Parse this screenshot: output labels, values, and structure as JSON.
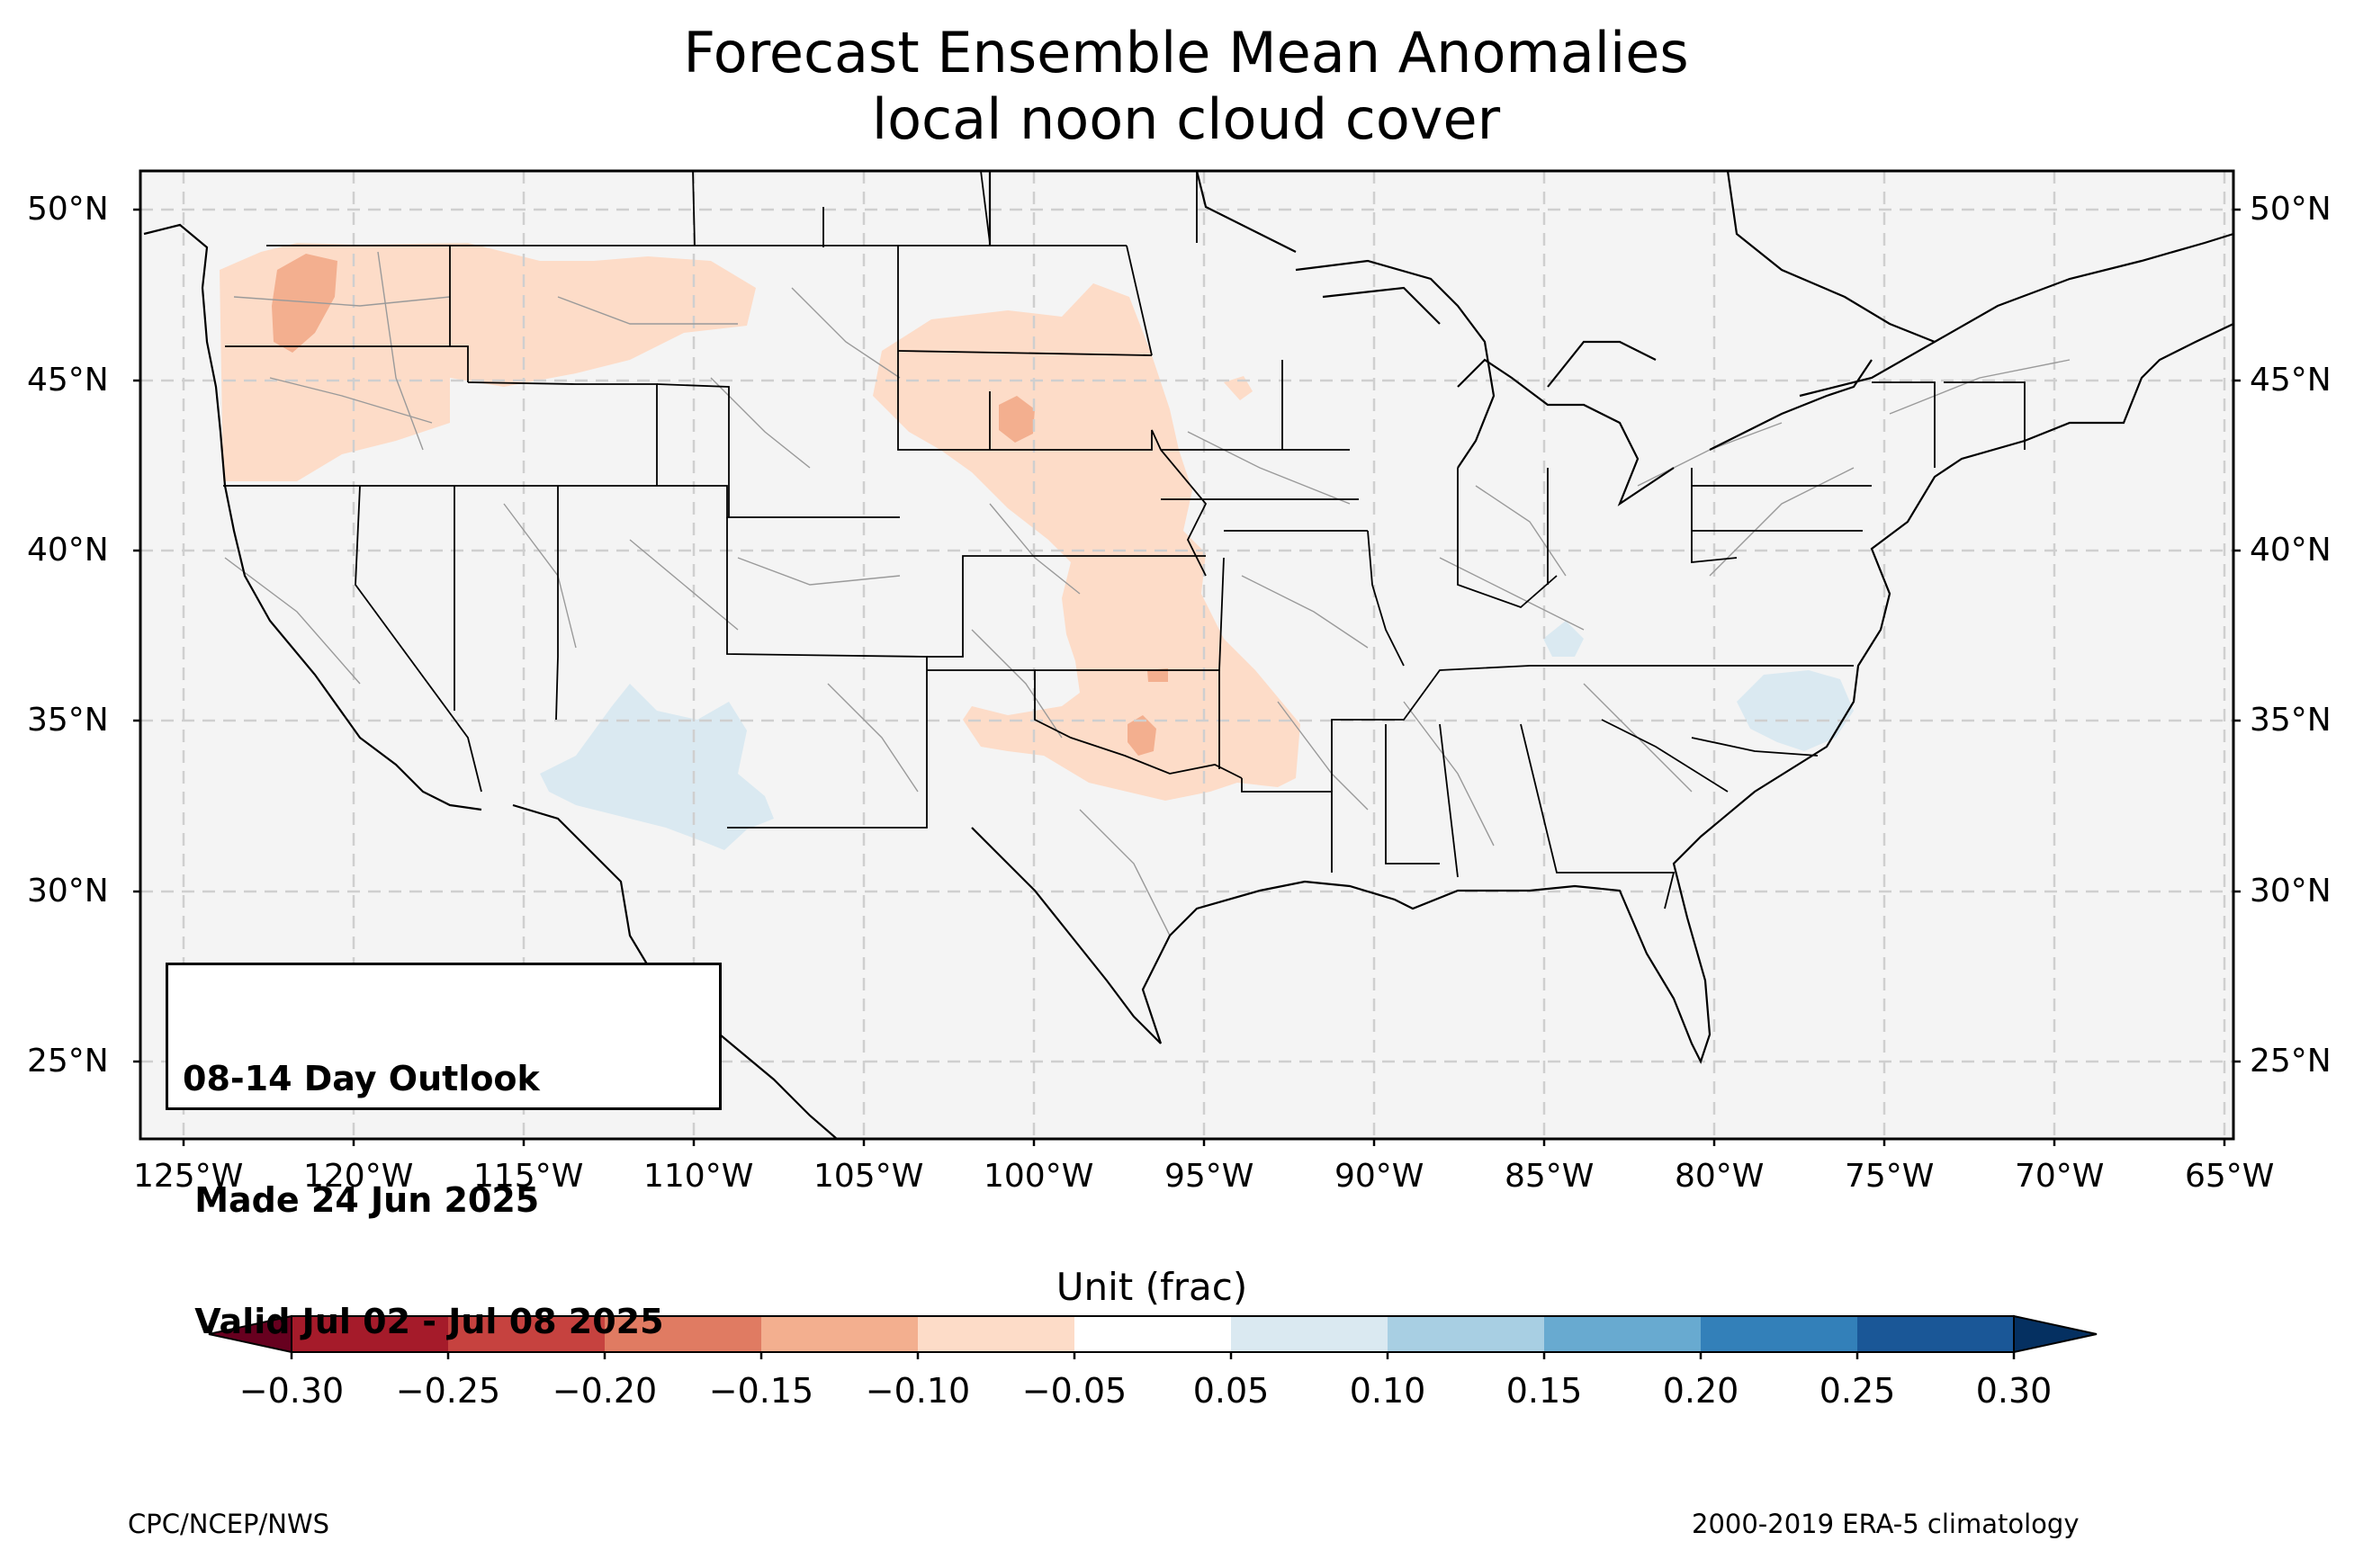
{
  "title": {
    "line1": "Forecast Ensemble Mean Anomalies",
    "line2": "local noon cloud cover"
  },
  "map": {
    "lat_labels": [
      "50°N",
      "45°N",
      "40°N",
      "35°N",
      "30°N",
      "25°N"
    ],
    "lon_labels": [
      "125°W",
      "120°W",
      "115°W",
      "110°W",
      "105°W",
      "100°W",
      "95°W",
      "90°W",
      "85°W",
      "80°W",
      "75°W",
      "70°W",
      "65°W"
    ],
    "extent": {
      "lon_min": -126.2,
      "lon_max": -64.8,
      "lat_min": 22.8,
      "lat_max": 51.2
    },
    "background_color": "#f4f4f4",
    "gridline_style": "dashed"
  },
  "outlook": {
    "line1": "08-14 Day Outlook",
    "line2": " Made 24 Jun 2025",
    "line3": " Valid Jul 02 - Jul 08 2025"
  },
  "colorbar": {
    "title": "Unit (frac)",
    "ticks": [
      "−0.30",
      "−0.25",
      "−0.20",
      "−0.15",
      "−0.10",
      "−0.05",
      "0.05",
      "0.10",
      "0.15",
      "0.20",
      "0.25",
      "0.30"
    ],
    "colors": [
      "#a51b2a",
      "#c6423f",
      "#e07b62",
      "#f3af8f",
      "#fddcc8",
      "#ffffff",
      "#dae9f1",
      "#a8cfe3",
      "#68aad0",
      "#3380b9",
      "#1a5797"
    ],
    "under_color": "#67001f",
    "over_color": "#053061"
  },
  "footer": {
    "left": "CPC/NCEP/NWS",
    "right": "2000-2019 ERA-5 climatology"
  }
}
